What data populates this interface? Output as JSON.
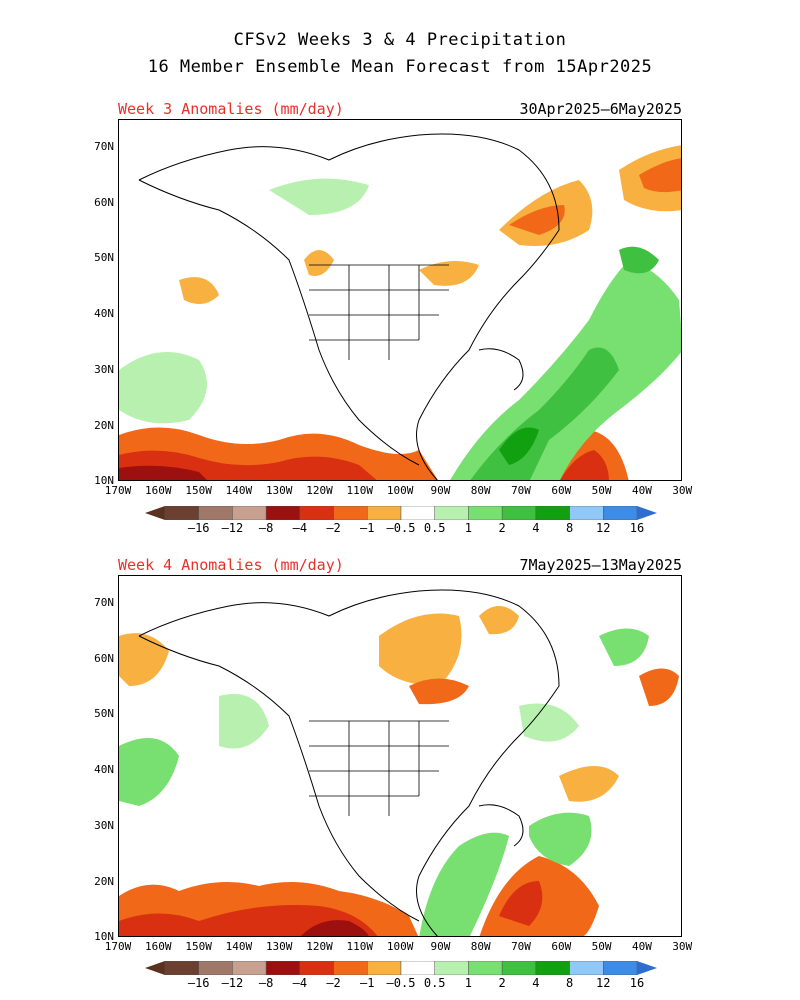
{
  "title_line1": "CFSv2 Weeks 3 & 4 Precipitation",
  "title_line2": "16 Member Ensemble Mean Forecast from 15Apr2025",
  "panels": [
    {
      "label": "Week 3 Anomalies (mm/day)",
      "dates": "30Apr2025–6May2025"
    },
    {
      "label": "Week 4 Anomalies (mm/day)",
      "dates": "7May2025–13May2025"
    }
  ],
  "lat_labels": [
    "70N",
    "60N",
    "50N",
    "40N",
    "30N",
    "20N",
    "10N"
  ],
  "lon_labels": [
    "170W",
    "160W",
    "150W",
    "140W",
    "130W",
    "120W",
    "110W",
    "100W",
    "90W",
    "80W",
    "70W",
    "60W",
    "50W",
    "40W",
    "30W"
  ],
  "colorbar": {
    "labels": [
      "–16",
      "–12",
      "–8",
      "–4",
      "–2",
      "–1",
      "–0.5",
      "0.5",
      "1",
      "2",
      "4",
      "8",
      "12",
      "16"
    ],
    "colors": [
      "#6b4030",
      "#a0786a",
      "#c8a090",
      "#9c1010",
      "#d83010",
      "#f06818",
      "#f8b040",
      "#ffffff",
      "#b8f0b0",
      "#78e070",
      "#40c040",
      "#10a010",
      "#90c8f8",
      "#3c8ce8"
    ],
    "end_left_color": "#5a3020",
    "end_right_color": "#2f6ed0"
  },
  "colors": {
    "title_red": "#e8302a"
  }
}
